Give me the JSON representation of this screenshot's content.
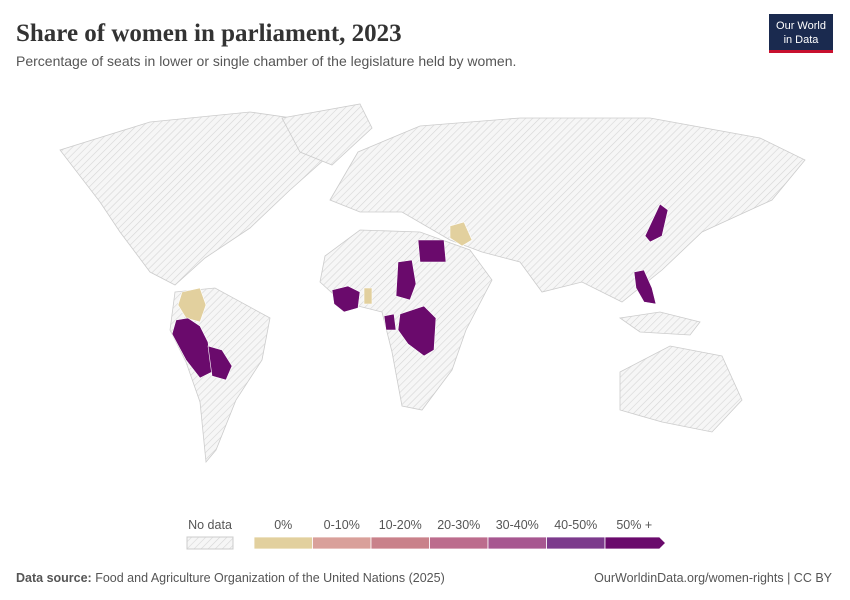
{
  "header": {
    "title": "Share of women in parliament, 2023",
    "subtitle": "Percentage of seats in lower or single chamber of the legislature held by women.",
    "logo": [
      "Our World",
      "in Data"
    ]
  },
  "legend": {
    "no_data": "No data",
    "bins": [
      {
        "label": "0%",
        "color": "#e2d09e"
      },
      {
        "label": "0-10%",
        "color": "#d9a09a"
      },
      {
        "label": "10-20%",
        "color": "#c9818a"
      },
      {
        "label": "20-30%",
        "color": "#bc6c8d"
      },
      {
        "label": "30-40%",
        "color": "#a75790"
      },
      {
        "label": "40-50%",
        "color": "#7c3a8c"
      },
      {
        "label": "50% +",
        "color": "#6a0a6c"
      }
    ]
  },
  "footer": {
    "source_label": "Data source:",
    "source": "Food and Agriculture Organization of the United Nations (2025)",
    "url": "OurWorldinData.org/women-rights | CC BY"
  }
}
